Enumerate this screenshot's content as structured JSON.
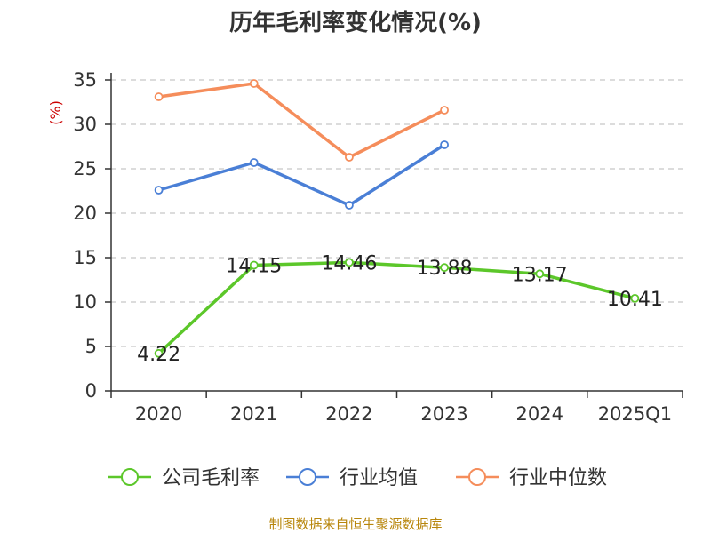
{
  "title": "历年毛利率变化情况(%)",
  "source": "制图数据来自恒生聚源数据库",
  "colors": {
    "axis": "#333333",
    "grid": "#c8c8c8",
    "unit": "#cc0000",
    "source": "#b8860b",
    "company": "#5cc72a",
    "industry_avg": "#4a7fd6",
    "industry_median": "#f58d5b"
  },
  "chart_data": {
    "type": "line",
    "title": "历年毛利率变化情况(%)",
    "xlabel": "",
    "ylabel": "(%)",
    "ylim": [
      0,
      35
    ],
    "yticks": [
      0,
      5,
      10,
      15,
      20,
      25,
      30,
      35
    ],
    "grid": true,
    "legend_position": "bottom",
    "categories": [
      "2020",
      "2021",
      "2022",
      "2023",
      "2024",
      "2025Q1"
    ],
    "series": [
      {
        "name": "公司毛利率",
        "color": "#5cc72a",
        "values": [
          4.22,
          14.15,
          14.46,
          13.88,
          13.17,
          10.41
        ],
        "labels": [
          "4.22",
          "14.15",
          "14.46",
          "13.88",
          "13.17",
          "10.41"
        ]
      },
      {
        "name": "行业均值",
        "color": "#4a7fd6",
        "values": [
          22.6,
          25.7,
          20.9,
          27.7,
          null,
          null
        ]
      },
      {
        "name": "行业中位数",
        "color": "#f58d5b",
        "values": [
          33.1,
          34.6,
          26.3,
          31.6,
          null,
          null
        ]
      }
    ]
  }
}
